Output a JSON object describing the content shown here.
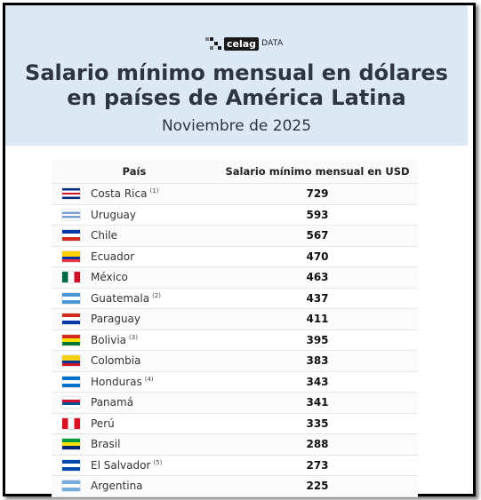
{
  "brand": {
    "logo_text": "celag",
    "logo_suffix": "DATA"
  },
  "chart_data": {
    "type": "table",
    "title_line1": "Salario mínimo mensual en dólares",
    "title_line2": "en países de América Latina",
    "subtitle": "Noviembre de 2025",
    "columns": [
      "País",
      "Salario mínimo mensual en USD"
    ],
    "rows": [
      {
        "country": "Costa Rica",
        "note": "(1)",
        "value": "729",
        "flag_colors": [
          "#002b7f",
          "#ffffff",
          "#ce1126",
          "#ffffff",
          "#002b7f"
        ]
      },
      {
        "country": "Uruguay",
        "note": "",
        "value": "593",
        "flag_colors": [
          "#ffffff",
          "#7b9fd4",
          "#ffffff",
          "#7b9fd4",
          "#ffffff"
        ]
      },
      {
        "country": "Chile",
        "note": "",
        "value": "567",
        "flag_colors": [
          "#0039a6",
          "#ffffff",
          "#d52b1e"
        ]
      },
      {
        "country": "Ecuador",
        "note": "",
        "value": "470",
        "flag_colors": [
          "#ffd100",
          "#ffd100",
          "#0033a0",
          "#ef3340"
        ]
      },
      {
        "country": "México",
        "note": "",
        "value": "463",
        "flag_colors": [
          "#006847",
          "#ffffff",
          "#ce1126"
        ]
      },
      {
        "country": "Guatemala",
        "note": "(2)",
        "value": "437",
        "flag_colors": [
          "#4997d0",
          "#ffffff",
          "#4997d0"
        ]
      },
      {
        "country": "Paraguay",
        "note": "",
        "value": "411",
        "flag_colors": [
          "#d52b1e",
          "#ffffff",
          "#0038a8"
        ]
      },
      {
        "country": "Bolivia",
        "note": "(3)",
        "value": "395",
        "flag_colors": [
          "#d52b1e",
          "#f9e300",
          "#007934"
        ]
      },
      {
        "country": "Colombia",
        "note": "",
        "value": "383",
        "flag_colors": [
          "#fcd116",
          "#fcd116",
          "#003893",
          "#ce1126"
        ]
      },
      {
        "country": "Honduras",
        "note": "(4)",
        "value": "343",
        "flag_colors": [
          "#0073cf",
          "#ffffff",
          "#0073cf"
        ]
      },
      {
        "country": "Panamá",
        "note": "",
        "value": "341",
        "flag_colors": [
          "#ffffff",
          "#d21034",
          "#005293",
          "#ffffff"
        ]
      },
      {
        "country": "Perú",
        "note": "",
        "value": "335",
        "flag_colors": [
          "#d91023",
          "#ffffff",
          "#d91023"
        ]
      },
      {
        "country": "Brasil",
        "note": "",
        "value": "288",
        "flag_colors": [
          "#009c3b",
          "#ffdf00",
          "#002776"
        ]
      },
      {
        "country": "El Salvador",
        "note": "(5)",
        "value": "273",
        "flag_colors": [
          "#0047ab",
          "#ffffff",
          "#0047ab"
        ]
      },
      {
        "country": "Argentina",
        "note": "",
        "value": "225",
        "flag_colors": [
          "#74acdf",
          "#ffffff",
          "#74acdf"
        ]
      }
    ]
  }
}
